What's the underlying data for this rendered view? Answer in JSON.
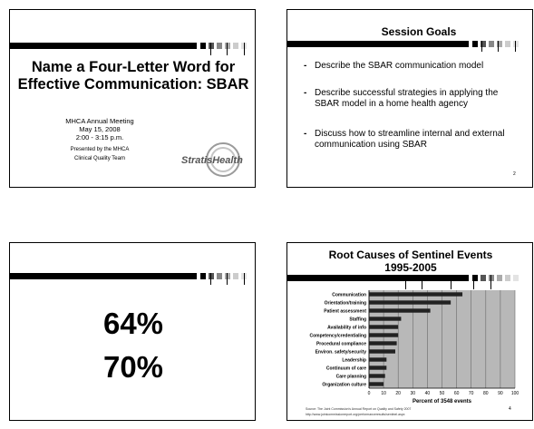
{
  "slide1": {
    "title": "Name a Four-Letter Word for Effective Communication: SBAR",
    "meeting": "MHCA Annual Meeting",
    "date": "May 15, 2008",
    "time": "2:00 - 3:15 p.m.",
    "presented_by": "Presented by the MHCA",
    "team": "Clinical Quality Team",
    "logo_text": "StratisHealth"
  },
  "slide2": {
    "title": "Session Goals",
    "bullets": [
      "Describe the SBAR communication model",
      "Describe successful strategies in applying the SBAR model in a home health agency",
      "Discuss how to streamline internal and external communication using SBAR"
    ],
    "page_number": "2"
  },
  "slide3": {
    "stat1": "64%",
    "stat2": "70%"
  },
  "slide4": {
    "title_line1": "Root Causes of Sentinel Events",
    "title_line2": "1995-2005",
    "source_line1": "Source: The Joint Commission's Annual Report on Quality and Safety 2007",
    "source_line2": "http://www.jointcommissionreport.org/performanceresults/sentinel.aspx",
    "page_number": "4"
  },
  "chart_data": {
    "type": "bar",
    "orientation": "horizontal",
    "categories": [
      "Communication",
      "Orientation/training",
      "Patient assessment",
      "Staffing",
      "Availability of info",
      "Competency/credentialing",
      "Procedural compliance",
      "Environ. safety/security",
      "Leadership",
      "Continuum of care",
      "Care planning",
      "Organization culture"
    ],
    "values": [
      64,
      56,
      42,
      22,
      20,
      20,
      19,
      18,
      12,
      12,
      11,
      10
    ],
    "xlabel": "Percent of 3548 events",
    "xlim": [
      0,
      100
    ],
    "xticks": [
      0,
      10,
      20,
      30,
      40,
      50,
      60,
      70,
      80,
      90,
      100
    ],
    "grid": true,
    "plot_background": "#b8b8b8",
    "bar_color": "#222222"
  }
}
